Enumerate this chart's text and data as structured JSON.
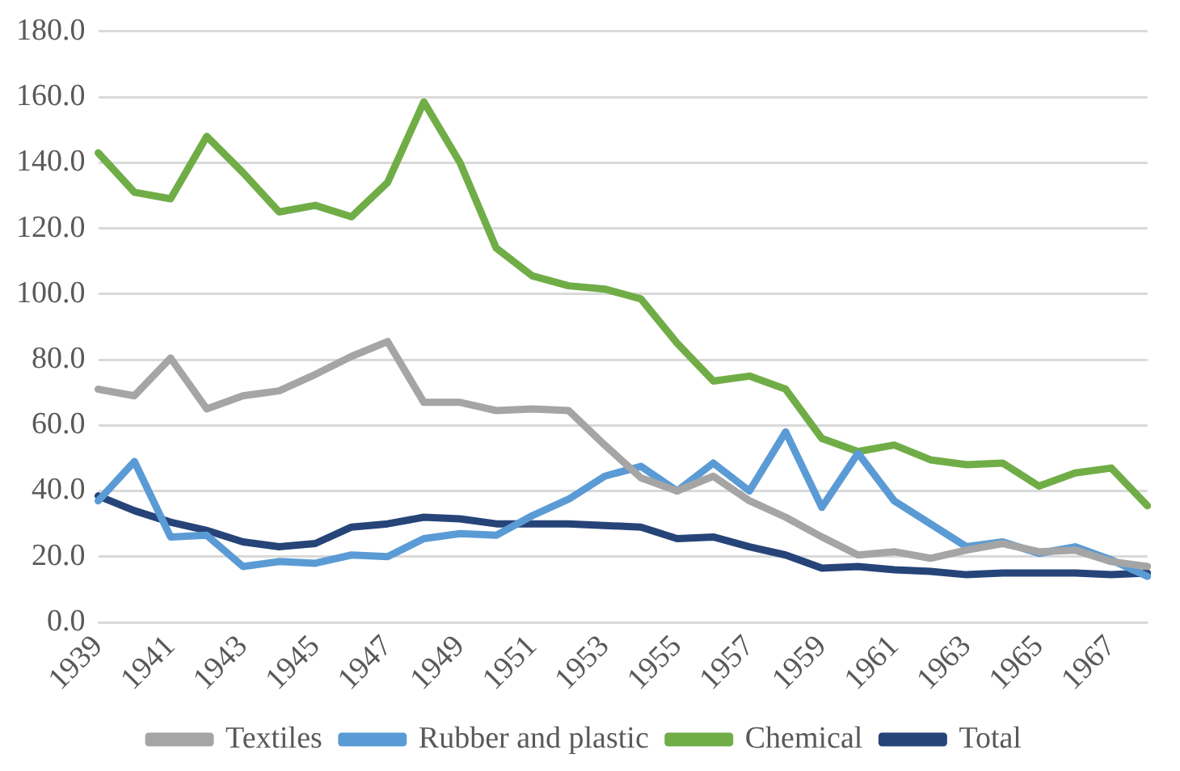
{
  "chart_data": {
    "type": "line",
    "categories": [
      "1939",
      null,
      "1941",
      null,
      "1943",
      null,
      "1945",
      null,
      "1947",
      null,
      "1949",
      null,
      "1951",
      null,
      "1953",
      null,
      "1955",
      null,
      "1957",
      null,
      "1959",
      null,
      "1961",
      null,
      "1963",
      null,
      "1965",
      null,
      "1967",
      null
    ],
    "series": [
      {
        "name": "Textiles",
        "color": "#a5a5a5",
        "values": [
          71,
          69,
          80.5,
          65,
          69,
          70.5,
          75.5,
          81,
          85.5,
          67,
          67,
          64.5,
          65,
          64.5,
          54,
          44,
          40,
          44.5,
          37,
          32,
          26,
          20.5,
          21.5,
          19.5,
          22,
          24,
          21.5,
          22,
          18.5,
          17
        ]
      },
      {
        "name": "Rubber and plastic",
        "color": "#5b9bd5",
        "values": [
          37,
          49,
          26,
          26.5,
          17,
          18.5,
          18,
          20.5,
          20,
          25.5,
          27,
          26.5,
          32.5,
          37.5,
          44.5,
          47.5,
          40,
          48.5,
          40,
          58,
          35,
          51.5,
          37,
          30,
          23,
          24.5,
          21,
          23,
          19,
          14
        ]
      },
      {
        "name": "Chemical",
        "color": "#70ad47",
        "values": [
          143,
          131,
          129,
          148,
          137,
          125,
          127,
          123.5,
          134,
          158.5,
          140,
          114,
          105.5,
          102.5,
          101.5,
          98.5,
          85,
          73.5,
          75,
          71,
          56,
          52,
          54,
          49.5,
          48,
          48.5,
          41.5,
          45.5,
          47,
          35.5
        ]
      },
      {
        "name": "Total",
        "color": "#264478",
        "values": [
          38.5,
          34,
          30.5,
          28,
          24.5,
          23,
          24,
          29,
          30,
          32,
          31.5,
          30,
          30,
          30,
          29.5,
          29,
          25.5,
          26,
          23,
          20.5,
          16.5,
          17,
          16,
          15.5,
          14.5,
          15,
          15,
          15,
          14.5,
          15
        ]
      }
    ],
    "ylim": [
      0,
      180
    ],
    "yticks": [
      {
        "value": 0,
        "label": "0.0"
      },
      {
        "value": 20,
        "label": "20.0"
      },
      {
        "value": 40,
        "label": "40.0"
      },
      {
        "value": 60,
        "label": "60.0"
      },
      {
        "value": 80,
        "label": "80.0"
      },
      {
        "value": 100,
        "label": "100.0"
      },
      {
        "value": 120,
        "label": "120.0"
      },
      {
        "value": 140,
        "label": "140.0"
      },
      {
        "value": 160,
        "label": "160.0"
      },
      {
        "value": 180,
        "label": "180.0"
      }
    ],
    "grid": "y",
    "legend": "bottom",
    "marker": "none",
    "line_style": "solid"
  }
}
